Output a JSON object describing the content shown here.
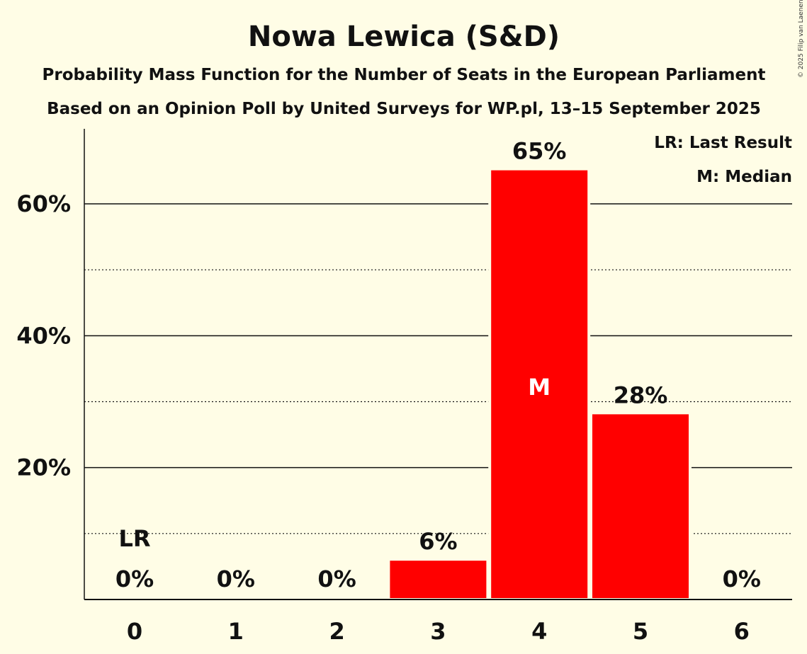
{
  "chart_data": {
    "type": "bar",
    "title": "Nowa Lewica (S&D)",
    "subtitle": "Probability Mass Function for the Number of Seats in the European Parliament",
    "subtitle2": "Based on an Opinion Poll by United Surveys for WP.pl, 13–15 September 2025",
    "copyright": "© 2025 Filip van Laenen",
    "categories": [
      "0",
      "1",
      "2",
      "3",
      "4",
      "5",
      "6"
    ],
    "values": [
      0,
      0,
      0,
      6.1,
      65.3,
      28.3,
      0
    ],
    "data_labels": [
      "0%",
      "0%",
      "0%",
      "6%",
      "65%",
      "28%",
      "0%"
    ],
    "ylim": [
      0,
      71
    ],
    "yticks": [
      {
        "v": 20,
        "label": "20%"
      },
      {
        "v": 40,
        "label": "40%"
      },
      {
        "v": 60,
        "label": "60%"
      }
    ],
    "minor_gridlines": [
      10,
      30,
      50
    ],
    "grid": true,
    "last_result_index": 0,
    "last_result_marker": "LR",
    "median_index": 4,
    "median_marker": "M",
    "legend": {
      "placement": "top-right",
      "items": [
        "LR: Last Result",
        "M: Median"
      ]
    },
    "colors": {
      "bar": "#ff0000",
      "background": "#fffde6",
      "text": "#111111"
    }
  }
}
